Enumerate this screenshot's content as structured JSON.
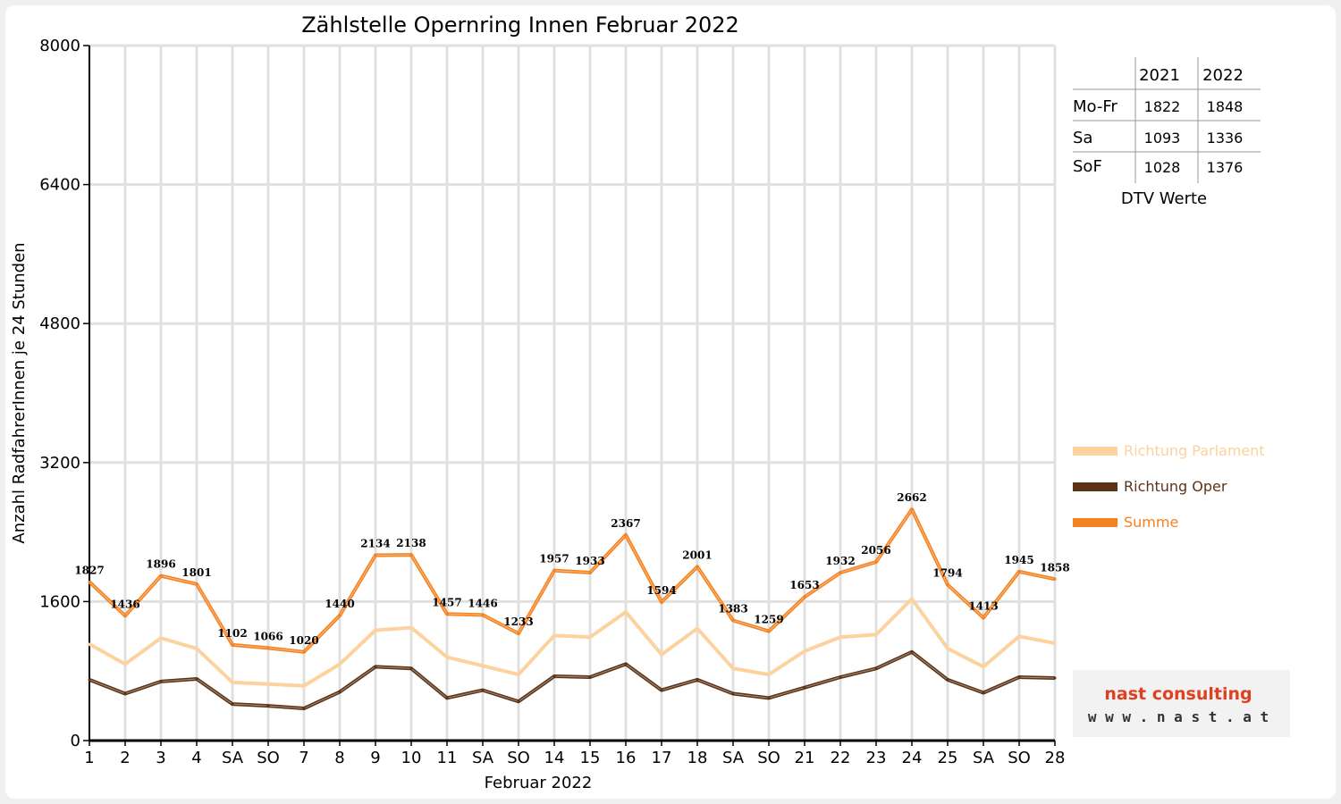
{
  "chart_data": {
    "type": "line",
    "title": "Zählstelle Opernring Innen Februar 2022",
    "xlabel": "Februar 2022",
    "ylabel": "Anzahl RadfahrerInnen je 24 Stunden",
    "ylim": [
      0,
      8000
    ],
    "yticks": [
      0,
      1600,
      3200,
      4800,
      6400,
      8000
    ],
    "grid": true,
    "legend_position": "right",
    "categories": [
      "1",
      "2",
      "3",
      "4",
      "SA",
      "SO",
      "7",
      "8",
      "9",
      "10",
      "11",
      "SA",
      "SO",
      "14",
      "15",
      "16",
      "17",
      "18",
      "SA",
      "SO",
      "21",
      "22",
      "23",
      "24",
      "25",
      "SA",
      "SO",
      "28"
    ],
    "weekend_color": "#ff0000",
    "series": [
      {
        "name": "Richtung Parlament",
        "color": "#fcd29e",
        "values": [
          1110,
          880,
          1180,
          1060,
          670,
          650,
          630,
          880,
          1270,
          1300,
          960,
          860,
          760,
          1210,
          1190,
          1480,
          990,
          1290,
          830,
          760,
          1030,
          1190,
          1220,
          1630,
          1060,
          850,
          1200,
          1120
        ]
      },
      {
        "name": "Richtung Oper",
        "color": "#5c3317",
        "values": [
          700,
          540,
          680,
          710,
          420,
          400,
          370,
          560,
          850,
          830,
          490,
          580,
          450,
          740,
          730,
          880,
          580,
          700,
          540,
          490,
          610,
          730,
          830,
          1020,
          700,
          550,
          730,
          720
        ]
      },
      {
        "name": "Summe",
        "color": "#f58220",
        "labeled": true,
        "values": [
          1827,
          1436,
          1896,
          1801,
          1102,
          1066,
          1020,
          1440,
          2134,
          2138,
          1457,
          1446,
          1233,
          1957,
          1933,
          2367,
          1594,
          2001,
          1383,
          1259,
          1653,
          1932,
          2056,
          2662,
          1794,
          1413,
          1945,
          1858
        ]
      }
    ]
  },
  "dtv_table": {
    "caption": "DTV Werte",
    "headers": [
      "",
      "2021",
      "2022"
    ],
    "rows": [
      {
        "label": "Mo-Fr",
        "v2021": "1822",
        "v2022": "1848"
      },
      {
        "label": "Sa",
        "v2021": "1093",
        "v2022": "1336"
      },
      {
        "label": "SoF",
        "v2021": "1028",
        "v2022": "1376"
      }
    ]
  },
  "logo": {
    "name": "nast consulting",
    "url": "w w w . n a s t . a t",
    "color_main": "#e04020",
    "color_secondary": "#444444"
  }
}
